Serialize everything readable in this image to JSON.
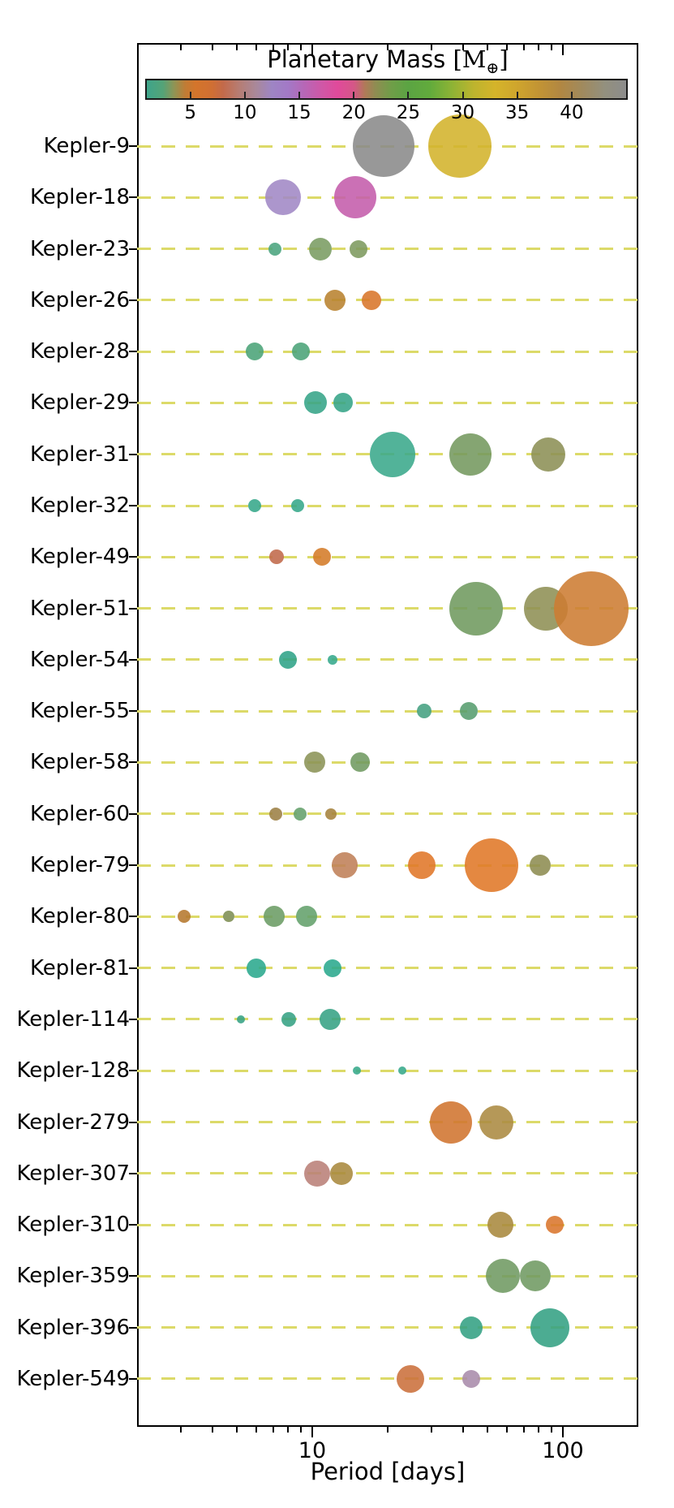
{
  "figure": {
    "title_text": "Planetary Mass ",
    "unit_open": "[",
    "unit_symbol": "M",
    "unit_sub": "⊕",
    "unit_close": "]",
    "xlabel": "Period [days]"
  },
  "x_axis": {
    "label": "Period [days]",
    "scale": "log",
    "xlim_days": [
      2,
      200
    ],
    "major_ticks": [
      {
        "value": 10,
        "label": "10"
      },
      {
        "value": 100,
        "label": "100"
      }
    ],
    "minor_ticks": [
      3,
      4,
      5,
      6,
      7,
      8,
      9,
      20,
      30,
      40,
      50,
      60,
      70,
      80,
      90
    ]
  },
  "grid": {
    "style": "dashed",
    "line_color": "#dcda69"
  },
  "colorbar": {
    "title": "Planetary Mass [M⊕]",
    "vmin": 1,
    "vmax": 45,
    "tick_values": [
      5,
      10,
      15,
      20,
      25,
      30,
      35,
      40
    ],
    "gradient_stops": [
      {
        "pct": 0,
        "color": "#3ea58b"
      },
      {
        "pct": 3.4,
        "color": "#55a377"
      },
      {
        "pct": 5.7,
        "color": "#8f9455"
      },
      {
        "pct": 8.0,
        "color": "#c07c35"
      },
      {
        "pct": 10.2,
        "color": "#d4752b"
      },
      {
        "pct": 13.6,
        "color": "#d06f33"
      },
      {
        "pct": 15.9,
        "color": "#c36a4a"
      },
      {
        "pct": 19.3,
        "color": "#b67d74"
      },
      {
        "pct": 22.7,
        "color": "#a98899"
      },
      {
        "pct": 26.1,
        "color": "#9e85c4"
      },
      {
        "pct": 29.5,
        "color": "#a379c6"
      },
      {
        "pct": 33.0,
        "color": "#b866b6"
      },
      {
        "pct": 36.4,
        "color": "#cf58a7"
      },
      {
        "pct": 39.8,
        "color": "#e04a9b"
      },
      {
        "pct": 43.2,
        "color": "#d55787"
      },
      {
        "pct": 45.5,
        "color": "#b07a58"
      },
      {
        "pct": 47.7,
        "color": "#8f8d52"
      },
      {
        "pct": 51.1,
        "color": "#6f9e48"
      },
      {
        "pct": 54.5,
        "color": "#5ba443"
      },
      {
        "pct": 59.1,
        "color": "#62ab3c"
      },
      {
        "pct": 63.6,
        "color": "#8db335"
      },
      {
        "pct": 68.2,
        "color": "#bdb42e"
      },
      {
        "pct": 72.7,
        "color": "#d5b42a"
      },
      {
        "pct": 77.3,
        "color": "#cfa52d"
      },
      {
        "pct": 81.8,
        "color": "#c29434"
      },
      {
        "pct": 86.4,
        "color": "#b18743"
      },
      {
        "pct": 90.9,
        "color": "#a08a5e"
      },
      {
        "pct": 95.5,
        "color": "#93907e"
      },
      {
        "pct": 100,
        "color": "#8c8c8c"
      }
    ]
  },
  "chart_data": {
    "type": "scatter",
    "title": "Planetary Mass [M⊕]",
    "xlabel": "Period [days]",
    "x_scale": "log",
    "xlim_days": [
      2,
      200
    ],
    "legend_position": "top colorbar",
    "bubble_color_encodes": "planetary mass in Earth masses (colorbar 1-45)",
    "bubble_size_encodes": "relative planet size",
    "systems": [
      {
        "name": "Kepler-9",
        "planets": [
          {
            "period_days": 19.24,
            "radius_px": 38,
            "color": "#8a8a8a",
            "mass_mearth_approx": 44
          },
          {
            "period_days": 38.91,
            "radius_px": 39,
            "color": "#d3b32b",
            "mass_mearth_approx": 32
          }
        ]
      },
      {
        "name": "Kepler-18",
        "planets": [
          {
            "period_days": 7.64,
            "radius_px": 22,
            "color": "#a087c5",
            "mass_mearth_approx": 12.5
          },
          {
            "period_days": 14.86,
            "radius_px": 26,
            "color": "#c45cab",
            "mass_mearth_approx": 16.5
          }
        ]
      },
      {
        "name": "Kepler-23",
        "planets": [
          {
            "period_days": 7.11,
            "radius_px": 8,
            "color": "#4aa47e",
            "mass_mearth_approx": 2
          },
          {
            "period_days": 10.74,
            "radius_px": 14,
            "color": "#7a9c62",
            "mass_mearth_approx": 27
          },
          {
            "period_days": 15.27,
            "radius_px": 11,
            "color": "#7d9a5e",
            "mass_mearth_approx": 27
          }
        ]
      },
      {
        "name": "Kepler-26",
        "planets": [
          {
            "period_days": 12.28,
            "radius_px": 13,
            "color": "#b8822f",
            "mass_mearth_approx": 38
          },
          {
            "period_days": 17.25,
            "radius_px": 12,
            "color": "#d8752a",
            "mass_mearth_approx": 5.5
          }
        ]
      },
      {
        "name": "Kepler-28",
        "planets": [
          {
            "period_days": 5.91,
            "radius_px": 11,
            "color": "#4aa378",
            "mass_mearth_approx": 2
          },
          {
            "period_days": 8.99,
            "radius_px": 11,
            "color": "#4aa378",
            "mass_mearth_approx": 2
          }
        ]
      },
      {
        "name": "Kepler-29",
        "planets": [
          {
            "period_days": 10.34,
            "radius_px": 14,
            "color": "#36a487",
            "mass_mearth_approx": 1.5
          },
          {
            "period_days": 13.29,
            "radius_px": 12,
            "color": "#36a487",
            "mass_mearth_approx": 1.5
          }
        ]
      },
      {
        "name": "Kepler-31",
        "planets": [
          {
            "period_days": 20.86,
            "radius_px": 28,
            "color": "#3aa98b",
            "mass_mearth_approx": 1.5
          },
          {
            "period_days": 42.63,
            "radius_px": 26,
            "color": "#74995f",
            "mass_mearth_approx": 27
          },
          {
            "period_days": 87.65,
            "radius_px": 21,
            "color": "#8c8f55",
            "mass_mearth_approx": 30
          }
        ]
      },
      {
        "name": "Kepler-32",
        "planets": [
          {
            "period_days": 5.9,
            "radius_px": 8,
            "color": "#36a78a",
            "mass_mearth_approx": 1.5
          },
          {
            "period_days": 8.75,
            "radius_px": 8,
            "color": "#36a78a",
            "mass_mearth_approx": 1.5
          }
        ]
      },
      {
        "name": "Kepler-49",
        "planets": [
          {
            "period_days": 7.2,
            "radius_px": 9,
            "color": "#c0694a",
            "mass_mearth_approx": 8
          },
          {
            "period_days": 10.91,
            "radius_px": 11,
            "color": "#d47b28",
            "mass_mearth_approx": 5.5
          }
        ]
      },
      {
        "name": "Kepler-51",
        "planets": [
          {
            "period_days": 45.15,
            "radius_px": 33,
            "color": "#6f9a5e",
            "mass_mearth_approx": 27
          },
          {
            "period_days": 85.31,
            "radius_px": 27,
            "color": "#8e8f54",
            "mass_mearth_approx": 30
          },
          {
            "period_days": 130.18,
            "radius_px": 46,
            "color": "#cd7c32",
            "mass_mearth_approx": 6
          }
        ]
      },
      {
        "name": "Kepler-54",
        "planets": [
          {
            "period_days": 8.01,
            "radius_px": 11,
            "color": "#2fa387",
            "mass_mearth_approx": 1.5
          },
          {
            "period_days": 12.07,
            "radius_px": 6,
            "color": "#35a98c",
            "mass_mearth_approx": 1.5
          }
        ]
      },
      {
        "name": "Kepler-55",
        "planets": [
          {
            "period_days": 27.95,
            "radius_px": 9,
            "color": "#44a181",
            "mass_mearth_approx": 2
          },
          {
            "period_days": 42.15,
            "radius_px": 11,
            "color": "#579d6e",
            "mass_mearth_approx": 3
          }
        ]
      },
      {
        "name": "Kepler-58",
        "planets": [
          {
            "period_days": 10.22,
            "radius_px": 13,
            "color": "#8b9356",
            "mass_mearth_approx": 29
          },
          {
            "period_days": 15.57,
            "radius_px": 12,
            "color": "#6f9a61",
            "mass_mearth_approx": 27
          }
        ]
      },
      {
        "name": "Kepler-60",
        "planets": [
          {
            "period_days": 7.13,
            "radius_px": 8,
            "color": "#9c7f44",
            "mass_mearth_approx": 35
          },
          {
            "period_days": 8.92,
            "radius_px": 8,
            "color": "#64a06b",
            "mass_mearth_approx": 3
          },
          {
            "period_days": 11.9,
            "radius_px": 7,
            "color": "#a5823c",
            "mass_mearth_approx": 36
          }
        ]
      },
      {
        "name": "Kepler-79",
        "planets": [
          {
            "period_days": 13.48,
            "radius_px": 16,
            "color": "#bf8058",
            "mass_mearth_approx": 9
          },
          {
            "period_days": 27.4,
            "radius_px": 17,
            "color": "#e07628",
            "mass_mearth_approx": 5.5
          },
          {
            "period_days": 52.09,
            "radius_px": 33,
            "color": "#e07727",
            "mass_mearth_approx": 5.5
          },
          {
            "period_days": 81.06,
            "radius_px": 13,
            "color": "#8d8c51",
            "mass_mearth_approx": 30
          }
        ]
      },
      {
        "name": "Kepler-80",
        "planets": [
          {
            "period_days": 3.07,
            "radius_px": 8,
            "color": "#b5772e",
            "mass_mearth_approx": 38
          },
          {
            "period_days": 4.64,
            "radius_px": 7,
            "color": "#7d8d52",
            "mass_mearth_approx": 29
          },
          {
            "period_days": 7.05,
            "radius_px": 13,
            "color": "#6b9c64",
            "mass_mearth_approx": 25
          },
          {
            "period_days": 9.52,
            "radius_px": 13,
            "color": "#63a06b",
            "mass_mearth_approx": 25
          }
        ]
      },
      {
        "name": "Kepler-81",
        "planets": [
          {
            "period_days": 5.96,
            "radius_px": 12,
            "color": "#2aa88d",
            "mass_mearth_approx": 1.5
          },
          {
            "period_days": 12.04,
            "radius_px": 11,
            "color": "#2aa88d",
            "mass_mearth_approx": 1.5
          }
        ]
      },
      {
        "name": "Kepler-114",
        "planets": [
          {
            "period_days": 5.19,
            "radius_px": 5,
            "color": "#36a284",
            "mass_mearth_approx": 1.5
          },
          {
            "period_days": 8.04,
            "radius_px": 9,
            "color": "#36a284",
            "mass_mearth_approx": 1.5
          },
          {
            "period_days": 11.78,
            "radius_px": 13,
            "color": "#36a284",
            "mass_mearth_approx": 1.5
          }
        ]
      },
      {
        "name": "Kepler-128",
        "planets": [
          {
            "period_days": 15.09,
            "radius_px": 5,
            "color": "#35a88a",
            "mass_mearth_approx": 1
          },
          {
            "period_days": 22.8,
            "radius_px": 5,
            "color": "#35a88a",
            "mass_mearth_approx": 1
          }
        ]
      },
      {
        "name": "Kepler-279",
        "planets": [
          {
            "period_days": 35.74,
            "radius_px": 26,
            "color": "#d0742f",
            "mass_mearth_approx": 5.5
          },
          {
            "period_days": 54.41,
            "radius_px": 21,
            "color": "#ab8a41",
            "mass_mearth_approx": 36
          }
        ]
      },
      {
        "name": "Kepler-307",
        "planets": [
          {
            "period_days": 10.42,
            "radius_px": 16,
            "color": "#b98077",
            "mass_mearth_approx": 9.5
          },
          {
            "period_days": 13.07,
            "radius_px": 14,
            "color": "#a8893e",
            "mass_mearth_approx": 36
          }
        ]
      },
      {
        "name": "Kepler-310",
        "planets": [
          {
            "period_days": 56.48,
            "radius_px": 16,
            "color": "#a8893e",
            "mass_mearth_approx": 36
          },
          {
            "period_days": 92.88,
            "radius_px": 11,
            "color": "#d9752c",
            "mass_mearth_approx": 5.5
          }
        ]
      },
      {
        "name": "Kepler-359",
        "planets": [
          {
            "period_days": 57.69,
            "radius_px": 21,
            "color": "#6f9a62",
            "mass_mearth_approx": 27
          },
          {
            "period_days": 77.79,
            "radius_px": 19,
            "color": "#6f9a62",
            "mass_mearth_approx": 27
          }
        ]
      },
      {
        "name": "Kepler-396",
        "planets": [
          {
            "period_days": 42.99,
            "radius_px": 14,
            "color": "#33a183",
            "mass_mearth_approx": 2
          },
          {
            "period_days": 88.51,
            "radius_px": 24,
            "color": "#33a183",
            "mass_mearth_approx": 2
          }
        ]
      },
      {
        "name": "Kepler-549",
        "planets": [
          {
            "period_days": 24.67,
            "radius_px": 17,
            "color": "#cb6f3b",
            "mass_mearth_approx": 7
          },
          {
            "period_days": 42.99,
            "radius_px": 11,
            "color": "#a98bab",
            "mass_mearth_approx": 14
          }
        ]
      }
    ]
  }
}
